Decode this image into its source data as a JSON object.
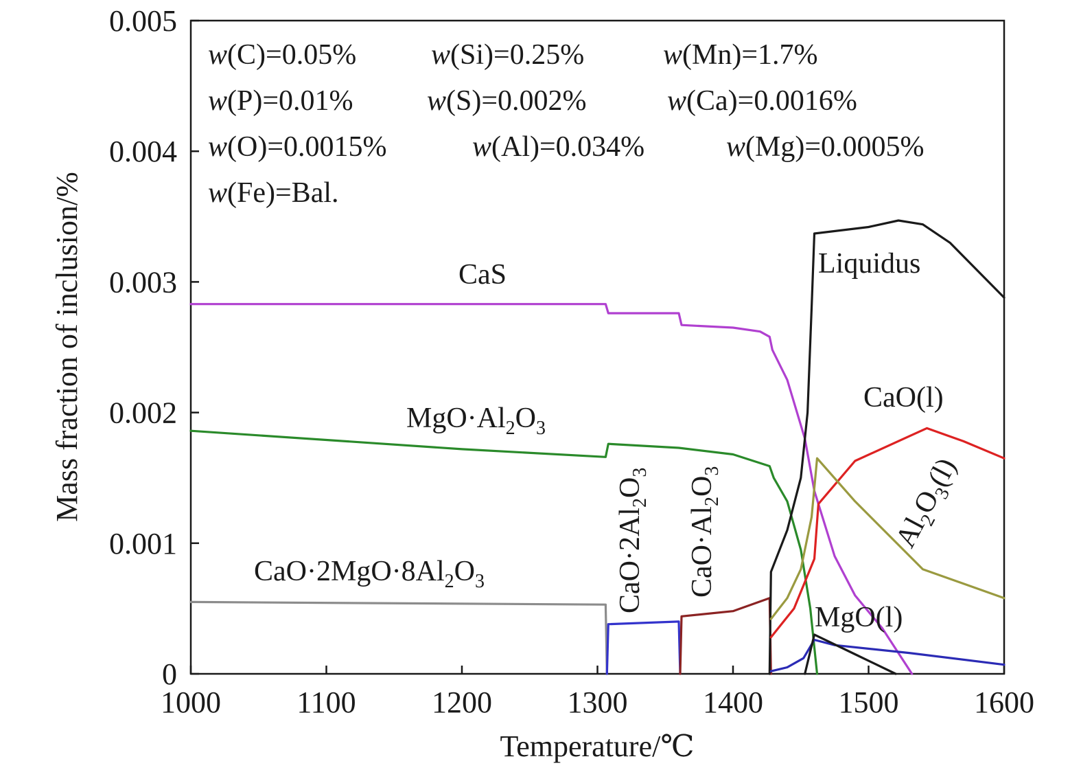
{
  "chart_data": {
    "type": "line",
    "xlabel": "Temperature/℃",
    "ylabel": "Mass fraction of inclusion/%",
    "xlim": [
      1000,
      1600
    ],
    "ylim": [
      0,
      0.005
    ],
    "xticks": [
      "1000",
      "1100",
      "1200",
      "1300",
      "1400",
      "1500",
      "1600"
    ],
    "yticks": [
      "0",
      "0.001",
      "0.002",
      "0.003",
      "0.004",
      "0.005"
    ],
    "grid": false,
    "legend": "none",
    "composition": [
      [
        "w(C)=0.05%",
        "w(Si)=0.25%",
        "w(Mn)=1.7%"
      ],
      [
        "w(P)=0.01%",
        "w(S)=0.002%",
        "w(Ca)=0.0016%"
      ],
      [
        "w(O)=0.0015%",
        "w(Al)=0.034%",
        "w(Mg)=0.0005%"
      ],
      [
        "w(Fe)=Bal."
      ]
    ],
    "series": [
      {
        "name": "CaS",
        "color": "#b040d0",
        "points": [
          [
            1000,
            0.00283
          ],
          [
            1306,
            0.00283
          ],
          [
            1308,
            0.00276
          ],
          [
            1360,
            0.00276
          ],
          [
            1362,
            0.00267
          ],
          [
            1400,
            0.00265
          ],
          [
            1420,
            0.00262
          ],
          [
            1427,
            0.00258
          ],
          [
            1429,
            0.00248
          ],
          [
            1440,
            0.00225
          ],
          [
            1453,
            0.0018
          ],
          [
            1460,
            0.0014
          ],
          [
            1475,
            0.0009
          ],
          [
            1490,
            0.0006
          ],
          [
            1510,
            0.00035
          ],
          [
            1532,
            0.0
          ]
        ]
      },
      {
        "name": "MgO·Al2O3",
        "color": "#2a8a2a",
        "points": [
          [
            1000,
            0.00186
          ],
          [
            1100,
            0.00179
          ],
          [
            1200,
            0.00172
          ],
          [
            1306,
            0.00166
          ],
          [
            1308,
            0.00176
          ],
          [
            1360,
            0.00173
          ],
          [
            1400,
            0.00168
          ],
          [
            1427,
            0.00159
          ],
          [
            1430,
            0.0015
          ],
          [
            1440,
            0.00132
          ],
          [
            1450,
            0.00095
          ],
          [
            1457,
            0.0005
          ],
          [
            1462,
            0.0
          ]
        ]
      },
      {
        "name": "CaO·2MgO·8Al2O3",
        "color": "#8c8c8c",
        "points": [
          [
            1000,
            0.00055
          ],
          [
            1306,
            0.00053
          ],
          [
            1307,
            0.0
          ]
        ]
      },
      {
        "name": "CaO·2Al2O3",
        "color": "#3333cc",
        "points": [
          [
            1307,
            0.0
          ],
          [
            1308,
            0.00038
          ],
          [
            1360,
            0.0004
          ],
          [
            1361,
            0.0
          ]
        ]
      },
      {
        "name": "CaO·Al2O3",
        "color": "#8b2323",
        "points": [
          [
            1361,
            0.0
          ],
          [
            1362,
            0.00044
          ],
          [
            1400,
            0.00048
          ],
          [
            1427,
            0.00058
          ],
          [
            1428,
            0.0
          ]
        ]
      },
      {
        "name": "Liquidus",
        "color": "#1a1a1a",
        "points": [
          [
            1427,
            0.0
          ],
          [
            1428,
            0.00078
          ],
          [
            1440,
            0.0011
          ],
          [
            1450,
            0.0015
          ],
          [
            1455,
            0.002
          ],
          [
            1458,
            0.0028
          ],
          [
            1460,
            0.00337
          ],
          [
            1500,
            0.00342
          ],
          [
            1522,
            0.00347
          ],
          [
            1540,
            0.00344
          ],
          [
            1560,
            0.0033
          ],
          [
            1600,
            0.00288
          ]
        ]
      },
      {
        "name": "CaO(l)",
        "color": "#dd2222",
        "points": [
          [
            1428,
            0.00028
          ],
          [
            1445,
            0.0005
          ],
          [
            1460,
            0.00088
          ],
          [
            1463,
            0.0013
          ],
          [
            1490,
            0.00163
          ],
          [
            1543,
            0.00188
          ],
          [
            1570,
            0.00178
          ],
          [
            1600,
            0.00165
          ]
        ]
      },
      {
        "name": "Al2O3(l)",
        "color": "#9a9a40",
        "points": [
          [
            1428,
            0.00042
          ],
          [
            1440,
            0.00058
          ],
          [
            1450,
            0.0008
          ],
          [
            1458,
            0.0012
          ],
          [
            1462,
            0.00165
          ],
          [
            1490,
            0.00132
          ],
          [
            1540,
            0.0008
          ],
          [
            1600,
            0.00058
          ]
        ]
      },
      {
        "name": "MgO(l)",
        "color": "#2b2bb5",
        "points": [
          [
            1428,
            2e-05
          ],
          [
            1440,
            5e-05
          ],
          [
            1452,
            0.00012
          ],
          [
            1460,
            0.00026
          ],
          [
            1475,
            0.00022
          ],
          [
            1530,
            0.00016
          ],
          [
            1600,
            7e-05
          ]
        ]
      },
      {
        "name": "MgO(l)-black",
        "color": "#1a1a1a",
        "points": [
          [
            1453,
            0.0
          ],
          [
            1460,
            0.0003
          ],
          [
            1490,
            0.00015
          ],
          [
            1520,
            0.0
          ]
        ]
      }
    ]
  }
}
